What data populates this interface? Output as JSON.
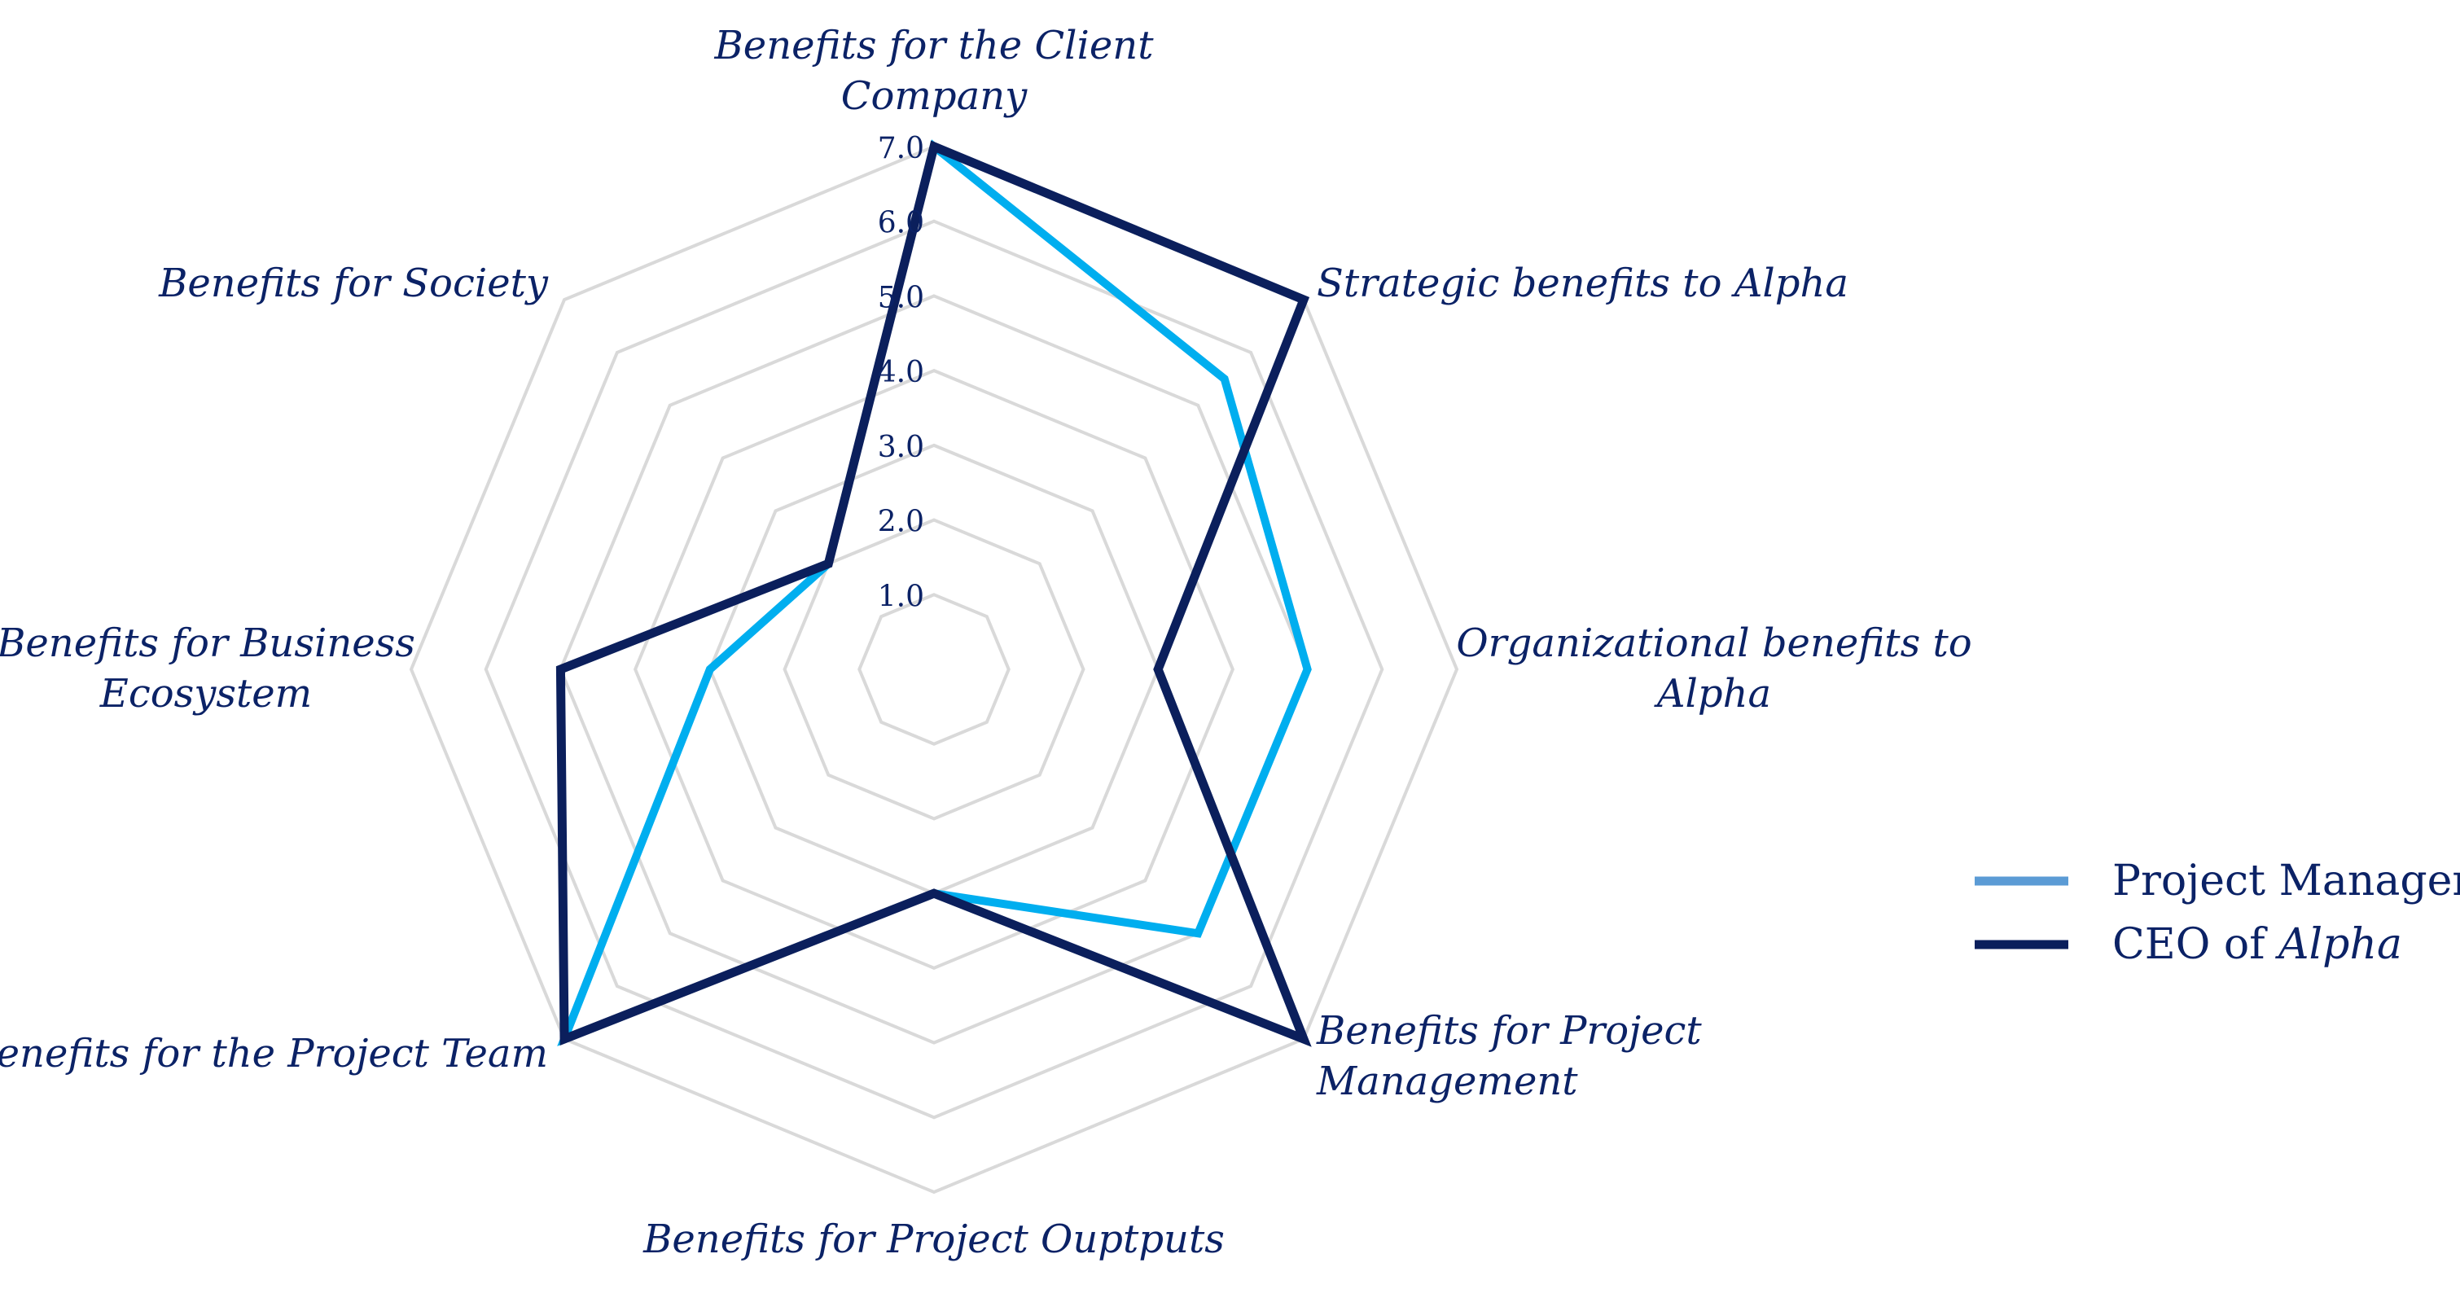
{
  "chart_data": {
    "type": "radar",
    "categories": [
      [
        "Benefits for the Client",
        "Company"
      ],
      [
        "Strategic benefits to Alpha"
      ],
      [
        "Organizational benefits to",
        "Alpha"
      ],
      [
        "Benefits for Project",
        "Management"
      ],
      [
        "Benefits for Project Ouptputs"
      ],
      [
        "Benefits for the Project Team"
      ],
      [
        "Benefits for Business",
        "Ecosystem"
      ],
      [
        "Benefits for Society"
      ]
    ],
    "r_ticks": [
      "1.0",
      "2.0",
      "3.0",
      "4.0",
      "5.0",
      "6.0",
      "7.0"
    ],
    "r_max": 7,
    "grid": true,
    "series": [
      {
        "name": "Project Manager",
        "legend_text": [
          "Project Manager"
        ],
        "color": "#00aeef",
        "legend_color": "#5b9bd5",
        "values": [
          7.0,
          5.5,
          5.0,
          5.0,
          3.0,
          7.0,
          3.0,
          2.0
        ]
      },
      {
        "name": "CEO of Alpha",
        "legend_text": [
          "CEO of ",
          "Alpha"
        ],
        "color": "#0b1f5c",
        "legend_color": "#0b1f5c",
        "values": [
          7.0,
          7.0,
          3.0,
          7.0,
          3.0,
          7.0,
          5.0,
          2.0
        ]
      }
    ],
    "legend_position": "right"
  }
}
